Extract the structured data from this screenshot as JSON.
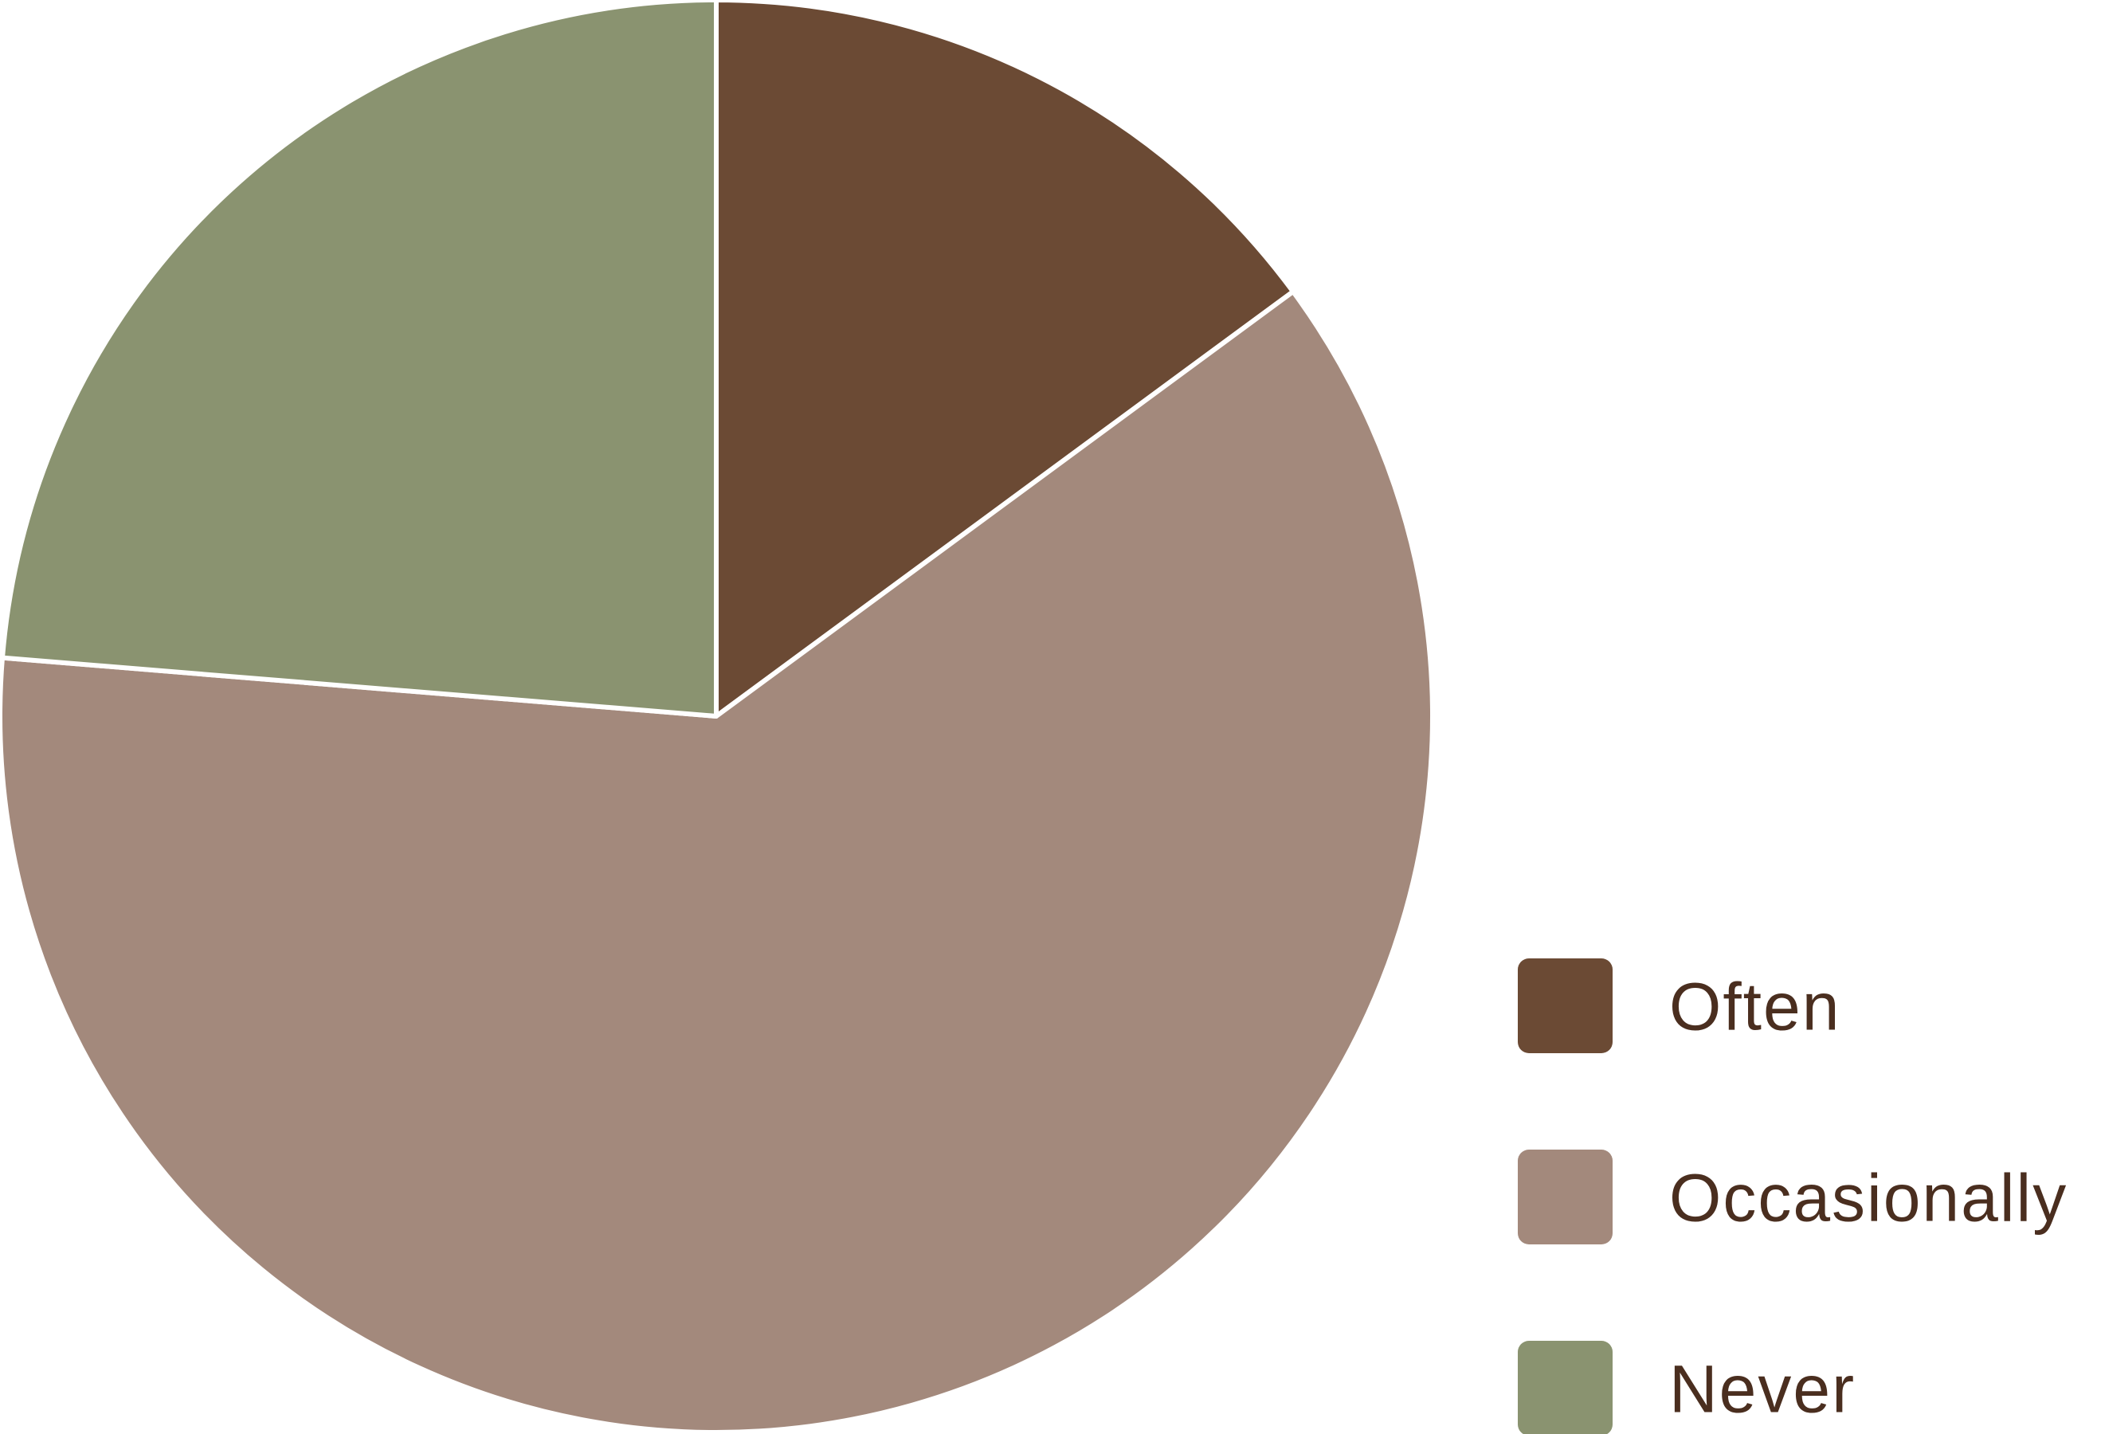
{
  "chart_data": {
    "type": "pie",
    "slices": [
      {
        "label": "Often",
        "value": 14.9,
        "color": "#6b4a34"
      },
      {
        "label": "Occasionally",
        "value": 61.4,
        "color": "#a3897c"
      },
      {
        "label": "Never",
        "value": 23.7,
        "color": "#8a9370"
      }
    ],
    "start_angle_deg": 0,
    "direction": "clockwise",
    "legend_position": "bottom-right"
  }
}
